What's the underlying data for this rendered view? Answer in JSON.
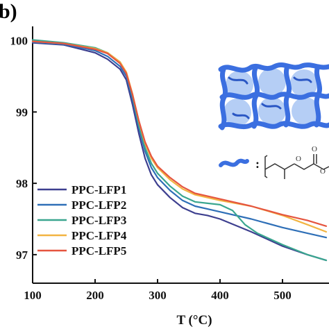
{
  "panel_label": "b)",
  "chart_data": {
    "type": "line",
    "xlabel": "T (°C)",
    "ylabel": "",
    "xlim": [
      100,
      570
    ],
    "ylim": [
      96.6,
      100.2
    ],
    "x_ticks": [
      100,
      200,
      300,
      400,
      500
    ],
    "y_ticks": [
      97,
      98,
      99,
      100
    ],
    "legend_position": "bottom-left",
    "grid": false,
    "series": [
      {
        "name": "PPC-LFP1",
        "color": "#3d3f8f",
        "x": [
          100,
          150,
          200,
          220,
          240,
          250,
          260,
          270,
          280,
          290,
          300,
          320,
          340,
          360,
          380,
          400,
          450,
          500,
          540,
          570
        ],
        "y": [
          99.97,
          99.94,
          99.83,
          99.74,
          99.6,
          99.45,
          99.1,
          98.7,
          98.35,
          98.12,
          97.98,
          97.8,
          97.66,
          97.58,
          97.55,
          97.5,
          97.32,
          97.12,
          97.0,
          96.92
        ]
      },
      {
        "name": "PPC-LFP2",
        "color": "#2e6fb7",
        "x": [
          100,
          150,
          200,
          220,
          240,
          250,
          260,
          270,
          280,
          290,
          300,
          320,
          340,
          360,
          380,
          400,
          450,
          500,
          540,
          570
        ],
        "y": [
          99.98,
          99.95,
          99.86,
          99.78,
          99.64,
          99.5,
          99.18,
          98.78,
          98.45,
          98.22,
          98.08,
          97.9,
          97.76,
          97.68,
          97.64,
          97.6,
          97.5,
          97.38,
          97.3,
          97.24
        ]
      },
      {
        "name": "PPC-LFP3",
        "color": "#3aa68f",
        "x": [
          100,
          150,
          200,
          220,
          240,
          250,
          260,
          270,
          280,
          290,
          300,
          320,
          340,
          360,
          380,
          400,
          420,
          440,
          460,
          500,
          540,
          570
        ],
        "y": [
          100.01,
          99.97,
          99.9,
          99.83,
          99.7,
          99.55,
          99.22,
          98.82,
          98.5,
          98.28,
          98.14,
          97.96,
          97.82,
          97.74,
          97.72,
          97.7,
          97.62,
          97.42,
          97.3,
          97.14,
          97.0,
          96.92
        ]
      },
      {
        "name": "PPC-LFP4",
        "color": "#f2b441",
        "x": [
          100,
          150,
          200,
          220,
          240,
          250,
          260,
          270,
          280,
          290,
          300,
          320,
          340,
          360,
          380,
          400,
          450,
          500,
          540,
          570
        ],
        "y": [
          99.99,
          99.96,
          99.89,
          99.83,
          99.7,
          99.56,
          99.25,
          98.87,
          98.56,
          98.35,
          98.22,
          98.05,
          97.92,
          97.84,
          97.8,
          97.76,
          97.68,
          97.55,
          97.42,
          97.32
        ]
      },
      {
        "name": "PPC-LFP5",
        "color": "#e5553f",
        "x": [
          100,
          150,
          200,
          220,
          240,
          250,
          260,
          270,
          280,
          290,
          300,
          320,
          340,
          360,
          380,
          400,
          450,
          500,
          540,
          570
        ],
        "y": [
          99.99,
          99.96,
          99.88,
          99.82,
          99.68,
          99.54,
          99.24,
          98.88,
          98.58,
          98.38,
          98.24,
          98.08,
          97.95,
          97.86,
          97.82,
          97.78,
          97.68,
          97.56,
          97.48,
          97.4
        ]
      }
    ]
  },
  "inset": {
    "structure_symbol": ":"
  }
}
